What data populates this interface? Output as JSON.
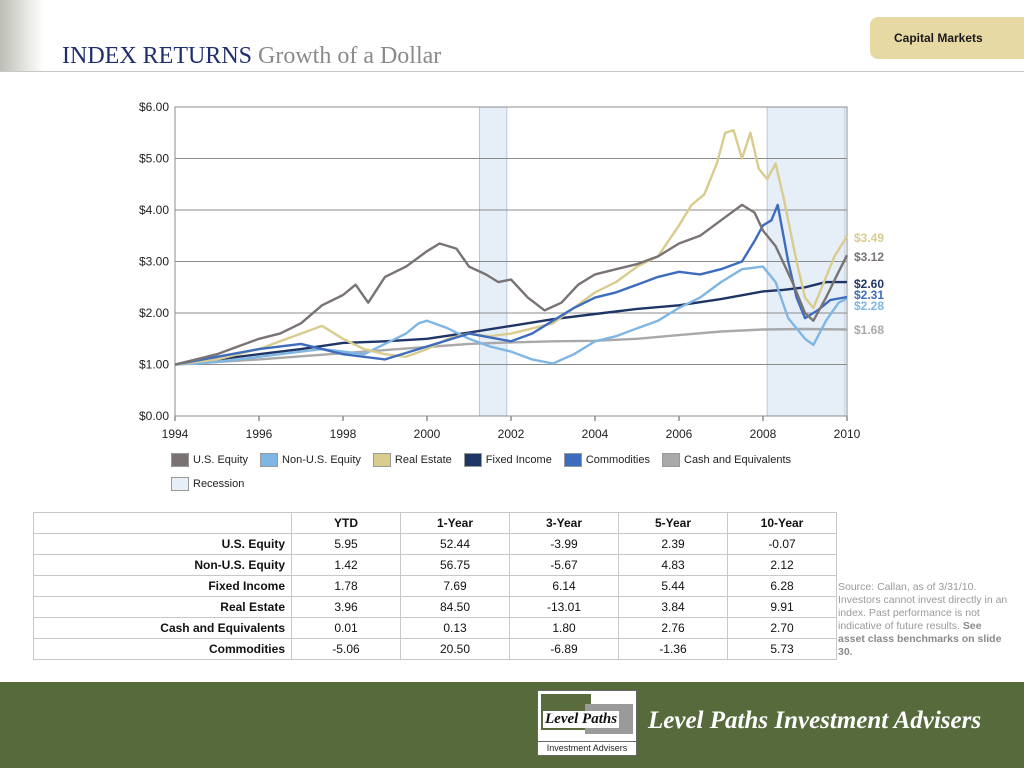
{
  "header": {
    "title_main": "INDEX RETURNS",
    "title_sub": "Growth of a Dollar",
    "tab_label": "Capital Markets"
  },
  "chart_data": {
    "type": "line",
    "title": "",
    "xlabel": "",
    "ylabel": "",
    "xlim": [
      1994,
      2010
    ],
    "ylim": [
      0,
      6
    ],
    "x_ticks": [
      "1994",
      "1996",
      "1998",
      "2000",
      "2002",
      "2004",
      "2006",
      "2008",
      "2010"
    ],
    "y_ticks": [
      "$0.00",
      "$1.00",
      "$2.00",
      "$3.00",
      "$4.00",
      "$5.00",
      "$6.00"
    ],
    "grid": "horizontal",
    "legend_position": "bottom",
    "recessions": [
      [
        2001.25,
        2001.9
      ],
      [
        2008.1,
        2009.95
      ]
    ],
    "recession_label": "Recession",
    "recession_color": "#e6eef8",
    "series": [
      {
        "name": "U.S. Equity",
        "color": "#7a7373",
        "end_label": "$3.12",
        "points": [
          [
            1994,
            1.0
          ],
          [
            1994.5,
            1.1
          ],
          [
            1995,
            1.2
          ],
          [
            1995.5,
            1.35
          ],
          [
            1996,
            1.5
          ],
          [
            1996.5,
            1.6
          ],
          [
            1997,
            1.8
          ],
          [
            1997.5,
            2.15
          ],
          [
            1998,
            2.35
          ],
          [
            1998.3,
            2.55
          ],
          [
            1998.6,
            2.2
          ],
          [
            1999,
            2.7
          ],
          [
            1999.5,
            2.9
          ],
          [
            2000,
            3.2
          ],
          [
            2000.3,
            3.35
          ],
          [
            2000.7,
            3.25
          ],
          [
            2001,
            2.9
          ],
          [
            2001.4,
            2.75
          ],
          [
            2001.7,
            2.6
          ],
          [
            2002,
            2.65
          ],
          [
            2002.4,
            2.3
          ],
          [
            2002.8,
            2.05
          ],
          [
            2003.2,
            2.2
          ],
          [
            2003.6,
            2.55
          ],
          [
            2004,
            2.75
          ],
          [
            2004.5,
            2.85
          ],
          [
            2005,
            2.95
          ],
          [
            2005.5,
            3.1
          ],
          [
            2006,
            3.35
          ],
          [
            2006.5,
            3.5
          ],
          [
            2007,
            3.8
          ],
          [
            2007.5,
            4.1
          ],
          [
            2007.8,
            3.95
          ],
          [
            2008,
            3.6
          ],
          [
            2008.3,
            3.3
          ],
          [
            2008.7,
            2.6
          ],
          [
            2009,
            2.0
          ],
          [
            2009.2,
            1.85
          ],
          [
            2009.5,
            2.3
          ],
          [
            2009.8,
            2.8
          ],
          [
            2010,
            3.12
          ]
        ]
      },
      {
        "name": "Non-U.S. Equity",
        "color": "#7fb6e3",
        "end_label": "$2.28",
        "points": [
          [
            1994,
            1.0
          ],
          [
            1994.5,
            1.02
          ],
          [
            1995,
            1.05
          ],
          [
            1995.5,
            1.1
          ],
          [
            1996,
            1.15
          ],
          [
            1996.5,
            1.2
          ],
          [
            1997,
            1.25
          ],
          [
            1997.5,
            1.3
          ],
          [
            1998,
            1.25
          ],
          [
            1998.5,
            1.2
          ],
          [
            1999,
            1.4
          ],
          [
            1999.5,
            1.6
          ],
          [
            1999.8,
            1.8
          ],
          [
            2000,
            1.85
          ],
          [
            2000.5,
            1.7
          ],
          [
            2001,
            1.5
          ],
          [
            2001.5,
            1.35
          ],
          [
            2002,
            1.25
          ],
          [
            2002.5,
            1.1
          ],
          [
            2003,
            1.02
          ],
          [
            2003.5,
            1.2
          ],
          [
            2004,
            1.45
          ],
          [
            2004.5,
            1.55
          ],
          [
            2005,
            1.7
          ],
          [
            2005.5,
            1.85
          ],
          [
            2006,
            2.1
          ],
          [
            2006.5,
            2.3
          ],
          [
            2007,
            2.6
          ],
          [
            2007.5,
            2.85
          ],
          [
            2008,
            2.9
          ],
          [
            2008.3,
            2.6
          ],
          [
            2008.6,
            1.9
          ],
          [
            2009,
            1.5
          ],
          [
            2009.2,
            1.38
          ],
          [
            2009.5,
            1.85
          ],
          [
            2009.8,
            2.2
          ],
          [
            2010,
            2.28
          ]
        ]
      },
      {
        "name": "Real Estate",
        "color": "#d8cc8e",
        "end_label": "$3.49",
        "points": [
          [
            1994,
            1.0
          ],
          [
            1994.5,
            1.05
          ],
          [
            1995,
            1.1
          ],
          [
            1995.5,
            1.2
          ],
          [
            1996,
            1.3
          ],
          [
            1996.5,
            1.45
          ],
          [
            1997,
            1.6
          ],
          [
            1997.5,
            1.75
          ],
          [
            1998,
            1.5
          ],
          [
            1998.5,
            1.3
          ],
          [
            1999,
            1.2
          ],
          [
            1999.5,
            1.15
          ],
          [
            2000,
            1.3
          ],
          [
            2000.5,
            1.5
          ],
          [
            2001,
            1.6
          ],
          [
            2001.5,
            1.55
          ],
          [
            2002,
            1.6
          ],
          [
            2002.5,
            1.7
          ],
          [
            2003,
            1.8
          ],
          [
            2003.5,
            2.1
          ],
          [
            2004,
            2.4
          ],
          [
            2004.5,
            2.6
          ],
          [
            2005,
            2.9
          ],
          [
            2005.5,
            3.1
          ],
          [
            2006,
            3.7
          ],
          [
            2006.3,
            4.1
          ],
          [
            2006.6,
            4.3
          ],
          [
            2006.9,
            4.9
          ],
          [
            2007.1,
            5.5
          ],
          [
            2007.3,
            5.55
          ],
          [
            2007.5,
            5.0
          ],
          [
            2007.7,
            5.5
          ],
          [
            2007.9,
            4.8
          ],
          [
            2008.1,
            4.6
          ],
          [
            2008.3,
            4.9
          ],
          [
            2008.5,
            4.2
          ],
          [
            2008.8,
            3.0
          ],
          [
            2009,
            2.3
          ],
          [
            2009.2,
            2.1
          ],
          [
            2009.4,
            2.5
          ],
          [
            2009.7,
            3.1
          ],
          [
            2010,
            3.49
          ]
        ]
      },
      {
        "name": "Fixed Income",
        "color": "#1f3566",
        "end_label": "$2.60",
        "points": [
          [
            1994,
            1.0
          ],
          [
            1995,
            1.1
          ],
          [
            1996,
            1.2
          ],
          [
            1997,
            1.3
          ],
          [
            1998,
            1.42
          ],
          [
            1999,
            1.45
          ],
          [
            2000,
            1.5
          ],
          [
            2001,
            1.62
          ],
          [
            2002,
            1.75
          ],
          [
            2003,
            1.88
          ],
          [
            2004,
            1.98
          ],
          [
            2005,
            2.08
          ],
          [
            2006,
            2.15
          ],
          [
            2007,
            2.27
          ],
          [
            2008,
            2.42
          ],
          [
            2008.5,
            2.45
          ],
          [
            2009,
            2.5
          ],
          [
            2009.5,
            2.6
          ],
          [
            2010,
            2.6
          ]
        ]
      },
      {
        "name": "Commodities",
        "color": "#3d6cbf",
        "end_label": "$2.31",
        "points": [
          [
            1994,
            1.0
          ],
          [
            1995,
            1.15
          ],
          [
            1996,
            1.3
          ],
          [
            1997,
            1.4
          ],
          [
            1998,
            1.2
          ],
          [
            1999,
            1.1
          ],
          [
            2000,
            1.35
          ],
          [
            2001,
            1.6
          ],
          [
            2002,
            1.45
          ],
          [
            2002.5,
            1.6
          ],
          [
            2003,
            1.85
          ],
          [
            2003.5,
            2.1
          ],
          [
            2004,
            2.3
          ],
          [
            2004.5,
            2.4
          ],
          [
            2005,
            2.55
          ],
          [
            2005.5,
            2.7
          ],
          [
            2006,
            2.8
          ],
          [
            2006.5,
            2.75
          ],
          [
            2007,
            2.85
          ],
          [
            2007.5,
            3.0
          ],
          [
            2007.8,
            3.4
          ],
          [
            2008,
            3.7
          ],
          [
            2008.2,
            3.8
          ],
          [
            2008.35,
            4.1
          ],
          [
            2008.6,
            3.0
          ],
          [
            2008.8,
            2.3
          ],
          [
            2009,
            1.9
          ],
          [
            2009.3,
            2.05
          ],
          [
            2009.6,
            2.25
          ],
          [
            2010,
            2.31
          ]
        ]
      },
      {
        "name": "Cash and Equivalents",
        "color": "#a9a9ab",
        "end_label": "$1.68",
        "points": [
          [
            1994,
            1.0
          ],
          [
            1995,
            1.05
          ],
          [
            1996,
            1.1
          ],
          [
            1997,
            1.16
          ],
          [
            1998,
            1.22
          ],
          [
            1999,
            1.28
          ],
          [
            2000,
            1.34
          ],
          [
            2001,
            1.4
          ],
          [
            2002,
            1.43
          ],
          [
            2003,
            1.45
          ],
          [
            2004,
            1.46
          ],
          [
            2005,
            1.5
          ],
          [
            2006,
            1.57
          ],
          [
            2007,
            1.64
          ],
          [
            2008,
            1.68
          ],
          [
            2009,
            1.69
          ],
          [
            2010,
            1.68
          ]
        ]
      }
    ]
  },
  "table": {
    "headers": [
      "",
      "YTD",
      "1-Year",
      "3-Year",
      "5-Year",
      "10-Year"
    ],
    "rows": [
      {
        "label": "U.S. Equity",
        "values": [
          "5.95",
          "52.44",
          "-3.99",
          "2.39",
          "-0.07"
        ]
      },
      {
        "label": "Non-U.S. Equity",
        "values": [
          "1.42",
          "56.75",
          "-5.67",
          "4.83",
          "2.12"
        ]
      },
      {
        "label": "Fixed Income",
        "values": [
          "1.78",
          "7.69",
          "6.14",
          "5.44",
          "6.28"
        ]
      },
      {
        "label": "Real Estate",
        "values": [
          "3.96",
          "84.50",
          "-13.01",
          "3.84",
          "9.91"
        ]
      },
      {
        "label": "Cash and Equivalents",
        "values": [
          "0.01",
          "0.13",
          "1.80",
          "2.76",
          "2.70"
        ]
      },
      {
        "label": "Commodities",
        "values": [
          "-5.06",
          "20.50",
          "-6.89",
          "-1.36",
          "5.73"
        ]
      }
    ]
  },
  "source_note": {
    "text": "Source: Callan, as of 3/31/10. Investors cannot invest directly in an index. Past performance is not indicative of future results. ",
    "bold": "See asset class benchmarks on slide 30."
  },
  "footer": {
    "logo_word": "Level Paths",
    "logo_sub": "Investment Advisers",
    "brand": "Level Paths Investment Advisers"
  }
}
